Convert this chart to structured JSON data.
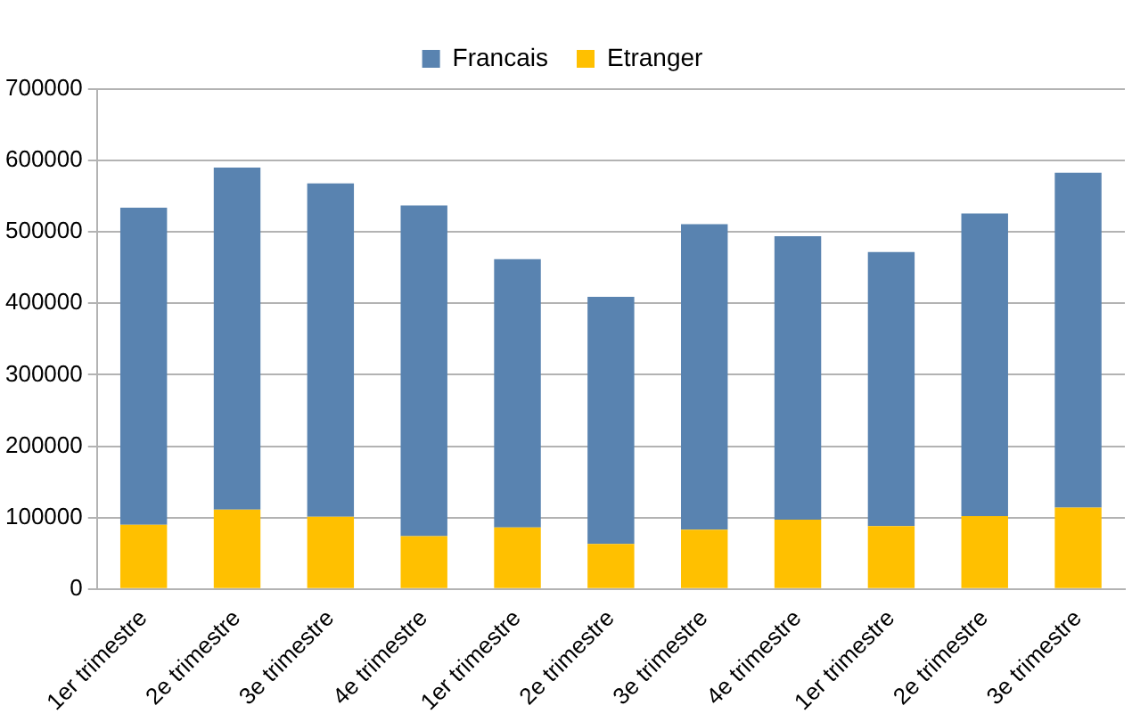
{
  "chart_data": {
    "type": "bar",
    "stacked": true,
    "categories": [
      "1er trimestre",
      "2e trimestre",
      "3e trimestre",
      "4e trimestre",
      "1er trimestre",
      "2e trimestre",
      "3e trimestre",
      "4e trimestre",
      "1er trimestre",
      "2e trimestre",
      "3e trimestre"
    ],
    "series": [
      {
        "name": "Etranger",
        "color": "#ffc000",
        "values": [
          90000,
          111000,
          101000,
          74000,
          86000,
          63000,
          83000,
          97000,
          88000,
          102000,
          114000
        ]
      },
      {
        "name": "Francais",
        "color": "#5983b0",
        "values": [
          444000,
          479000,
          467000,
          463000,
          376000,
          346000,
          428000,
          397000,
          384000,
          424000,
          469000
        ]
      }
    ],
    "ylim": [
      0,
      700000
    ],
    "yticks": [
      0,
      100000,
      200000,
      300000,
      400000,
      500000,
      600000,
      700000
    ],
    "grid": "y",
    "legend": "top"
  }
}
